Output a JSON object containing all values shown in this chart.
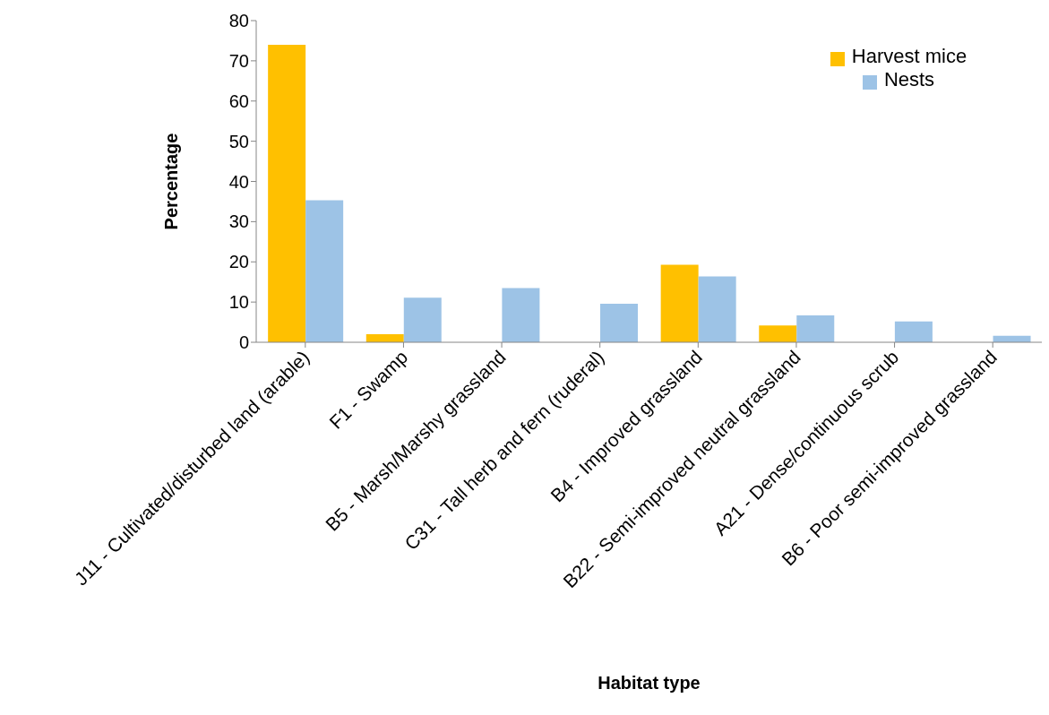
{
  "chart_data": {
    "type": "bar",
    "xlabel": "Habitat type",
    "ylabel": "Percentage",
    "categories": [
      "J11 - Cultivated/disturbed land (arable)",
      "F1 - Swamp",
      "B5 - Marsh/Marshy grassland",
      "C31 - Tall herb and fern (ruderal)",
      "B4 - Improved grassland",
      "B22 - Semi-improved neutral grassland",
      "A21 - Dense/continuous scrub",
      "B6 - Poor semi-improved grassland"
    ],
    "series": [
      {
        "name": "Harvest mice",
        "color": "#ffc000",
        "values": [
          74.0,
          2.0,
          0,
          0,
          19.3,
          4.2,
          0,
          0
        ]
      },
      {
        "name": "Nests",
        "color": "#9dc3e6",
        "values": [
          35.3,
          11.1,
          13.5,
          9.6,
          16.4,
          6.7,
          5.2,
          1.6
        ]
      }
    ],
    "ylim": [
      0,
      80
    ],
    "yticks": [
      0,
      10,
      20,
      30,
      40,
      50,
      60,
      70,
      80
    ],
    "grid": false,
    "legend": "top right"
  }
}
